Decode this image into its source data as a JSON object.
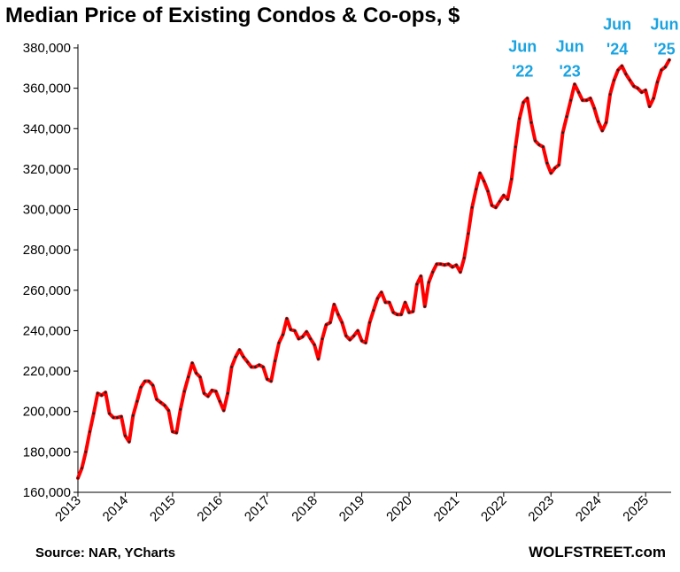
{
  "chart_data": {
    "type": "line",
    "title": "Median Price of Existing Condos & Co-ops, $",
    "source": "Source: NAR, YCharts",
    "watermark": "WOLFSTREET.com",
    "xlabel": "",
    "ylabel": "",
    "xlim": [
      2013.0,
      2025.54
    ],
    "ylim": [
      160000,
      380000
    ],
    "yticks": [
      160000,
      180000,
      200000,
      220000,
      240000,
      260000,
      280000,
      300000,
      320000,
      340000,
      360000,
      380000
    ],
    "ytick_labels": [
      "160,000",
      "180,000",
      "200,000",
      "220,000",
      "240,000",
      "260,000",
      "280,000",
      "300,000",
      "320,000",
      "340,000",
      "360,000",
      "380,000"
    ],
    "xticks": [
      2013,
      2014,
      2015,
      2016,
      2017,
      2018,
      2019,
      2020,
      2021,
      2022,
      2023,
      2024,
      2025
    ],
    "xtick_labels": [
      "2013",
      "2014",
      "2015",
      "2016",
      "2017",
      "2018",
      "2019",
      "2020",
      "2021",
      "2022",
      "2023",
      "2024",
      "2025"
    ],
    "grid": false,
    "line_color": "#ff0000",
    "marker_color": "#222222",
    "annotation_color": "#1aa3e0",
    "series": [
      {
        "start": "2013-01",
        "values": [
          167000,
          172000,
          180000,
          190000,
          199000,
          209000,
          208000,
          209500,
          199000,
          197000,
          197000,
          197500,
          188000,
          185000,
          198000,
          205000,
          212000,
          215000,
          215000,
          213000,
          206000,
          204500,
          203000,
          200500,
          190000,
          189500,
          201000,
          210000,
          217000,
          224000,
          219000,
          217000,
          209000,
          207500,
          210500,
          210000,
          205000,
          200500,
          209000,
          222000,
          227000,
          230500,
          227000,
          224500,
          222000,
          222000,
          223000,
          222000,
          216000,
          215000,
          225000,
          234000,
          238000,
          246000,
          240500,
          240000,
          236000,
          237000,
          239500,
          236000,
          233000,
          226000,
          236000,
          243000,
          244000,
          253000,
          248000,
          244000,
          237500,
          235500,
          237500,
          240000,
          235000,
          234000,
          244000,
          250000,
          256000,
          259000,
          254000,
          254000,
          249000,
          248000,
          248000,
          254000,
          249000,
          249500,
          263000,
          267000,
          252000,
          264000,
          269000,
          273000,
          273000,
          272500,
          273000,
          271500,
          272500,
          269000,
          276000,
          288000,
          301000,
          310000,
          318000,
          314000,
          309000,
          302000,
          301000,
          304000,
          307000,
          305000,
          315000,
          331000,
          345000,
          353000,
          355000,
          343000,
          334000,
          332000,
          331000,
          323000,
          318000,
          320500,
          322000,
          338000,
          346000,
          354000,
          362000,
          358000,
          354000,
          354000,
          355000,
          350000,
          343500,
          339000,
          343000,
          357000,
          364000,
          369000,
          371000,
          367000,
          364000,
          361000,
          360000,
          358000,
          359000,
          351000,
          355000,
          363000,
          369000,
          370500,
          374000
        ]
      }
    ],
    "annotations": [
      {
        "line1": "Jun",
        "line2": "'22",
        "x": 2022.4,
        "y_top": 378000
      },
      {
        "line1": "Jun",
        "line2": "'23",
        "x": 2023.4,
        "y_top": 378000
      },
      {
        "line1": "Jun",
        "line2": "'24",
        "x": 2024.4,
        "y_top": 389000
      },
      {
        "line1": "Jun",
        "line2": "'25",
        "x": 2025.4,
        "y_top": 389000
      }
    ]
  }
}
